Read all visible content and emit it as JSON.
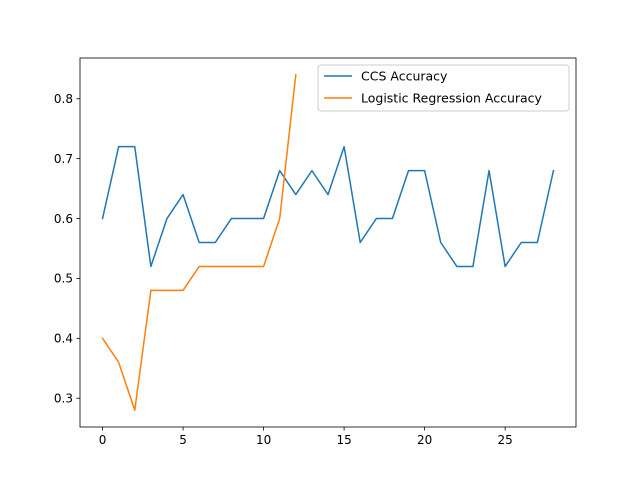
{
  "chart_data": {
    "type": "line",
    "title": "",
    "xlabel": "",
    "ylabel": "",
    "xlim": [
      -1.4,
      29.4
    ],
    "ylim": [
      0.252,
      0.868
    ],
    "xticks": [
      0,
      5,
      10,
      15,
      20,
      25
    ],
    "yticks": [
      0.3,
      0.4,
      0.5,
      0.6,
      0.7,
      0.8
    ],
    "grid": false,
    "legend_position": "top-right",
    "series": [
      {
        "name": "CCS Accuracy",
        "color": "#1f77b4",
        "x": [
          0,
          1,
          2,
          3,
          4,
          5,
          6,
          7,
          8,
          9,
          10,
          11,
          12,
          13,
          14,
          15,
          16,
          17,
          18,
          19,
          20,
          21,
          22,
          23,
          24,
          25,
          26,
          27,
          28
        ],
        "values": [
          0.6,
          0.72,
          0.72,
          0.52,
          0.6,
          0.64,
          0.56,
          0.56,
          0.6,
          0.6,
          0.6,
          0.68,
          0.64,
          0.68,
          0.64,
          0.72,
          0.56,
          0.6,
          0.6,
          0.68,
          0.68,
          0.56,
          0.52,
          0.52,
          0.68,
          0.52,
          0.56,
          0.56,
          0.68
        ]
      },
      {
        "name": "Logistic Regression Accuracy",
        "color": "#ff7f0e",
        "x": [
          0,
          1,
          2,
          3,
          4,
          5,
          6,
          7,
          8,
          9,
          10,
          11,
          12
        ],
        "values": [
          0.4,
          0.36,
          0.28,
          0.48,
          0.48,
          0.48,
          0.52,
          0.52,
          0.52,
          0.52,
          0.52,
          0.6,
          0.84
        ]
      }
    ]
  }
}
